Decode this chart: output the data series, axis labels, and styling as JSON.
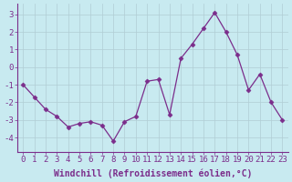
{
  "x": [
    0,
    1,
    2,
    3,
    4,
    5,
    6,
    7,
    8,
    9,
    10,
    11,
    12,
    13,
    14,
    15,
    16,
    17,
    18,
    19,
    20,
    21,
    22,
    23
  ],
  "y": [
    -1.0,
    -1.7,
    -2.4,
    -2.8,
    -3.4,
    -3.2,
    -3.1,
    -3.3,
    -4.2,
    -3.1,
    -2.8,
    -0.8,
    -0.7,
    -2.7,
    0.5,
    1.3,
    2.2,
    3.1,
    2.0,
    0.7,
    -1.3,
    -0.4,
    -2.0,
    -3.0
  ],
  "line_color": "#7B2D8B",
  "marker": "D",
  "marker_size": 2.5,
  "bg_color": "#c8eaf0",
  "grid_color": "#b0cdd4",
  "xlabel": "Windchill (Refroidissement éolien,°C)",
  "xlabel_fontsize": 7,
  "tick_fontsize": 6.5,
  "ylim": [
    -4.8,
    3.6
  ],
  "yticks": [
    -4,
    -3,
    -2,
    -1,
    0,
    1,
    2,
    3
  ],
  "xticks": [
    0,
    1,
    2,
    3,
    4,
    5,
    6,
    7,
    8,
    9,
    10,
    11,
    12,
    13,
    14,
    15,
    16,
    17,
    18,
    19,
    20,
    21,
    22,
    23
  ],
  "border_color": "#7B2D8B",
  "text_color": "#7B2D8B"
}
